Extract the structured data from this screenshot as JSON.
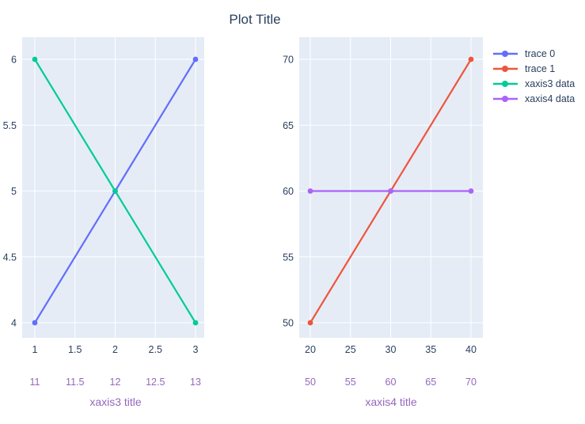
{
  "title": "Plot Title",
  "colors": {
    "paper": "#ffffff",
    "plot_bg": "#e5ecf6",
    "grid": "#ffffff",
    "text": "#2a3f5f",
    "secondary_axis": "#9467bd",
    "trace0": "#636efa",
    "trace1": "#ef553b",
    "xaxis3_data": "#00cc96",
    "xaxis4_data": "#ab63fa"
  },
  "legend": {
    "position": "right-top",
    "items": [
      {
        "label": "trace 0",
        "color": "#636efa"
      },
      {
        "label": "trace 1",
        "color": "#ef553b"
      },
      {
        "label": "xaxis3 data",
        "color": "#00cc96"
      },
      {
        "label": "xaxis4 data",
        "color": "#ab63fa"
      }
    ]
  },
  "chart_data": [
    {
      "type": "line",
      "subplot": "left",
      "grid": true,
      "traces": [
        {
          "name": "trace 0",
          "mode": "lines+markers",
          "xaxis": "x",
          "color": "#636efa",
          "x": [
            1,
            2,
            3
          ],
          "y": [
            4,
            5,
            6
          ]
        },
        {
          "name": "xaxis3 data",
          "mode": "lines+markers",
          "xaxis": "x2",
          "color": "#00cc96",
          "x": [
            11,
            12,
            13
          ],
          "y": [
            6,
            5,
            4
          ]
        }
      ],
      "axes": {
        "x": {
          "name": "xaxis1",
          "range": [
            1,
            3
          ],
          "ticks": [
            "1",
            "1.5",
            "2",
            "2.5",
            "3"
          ]
        },
        "x2": {
          "name": "xaxis3",
          "range": [
            11,
            13
          ],
          "ticks": [
            "11",
            "11.5",
            "12",
            "12.5",
            "13"
          ],
          "title": "xaxis3 title",
          "color": "#9467bd"
        },
        "y": {
          "name": "yaxis1",
          "range": [
            4,
            6
          ],
          "ticks": [
            "4",
            "4.5",
            "5",
            "5.5",
            "6"
          ]
        }
      }
    },
    {
      "type": "line",
      "subplot": "right",
      "grid": true,
      "traces": [
        {
          "name": "trace 1",
          "mode": "lines+markers",
          "xaxis": "x",
          "color": "#ef553b",
          "x": [
            20,
            30,
            40
          ],
          "y": [
            50,
            60,
            70
          ]
        },
        {
          "name": "xaxis4 data",
          "mode": "lines+markers",
          "xaxis": "x2",
          "color": "#ab63fa",
          "x": [
            50,
            60,
            70
          ],
          "y": [
            60,
            60,
            60
          ]
        }
      ],
      "axes": {
        "x": {
          "name": "xaxis2",
          "range": [
            20,
            40
          ],
          "ticks": [
            "20",
            "25",
            "30",
            "35",
            "40"
          ]
        },
        "x2": {
          "name": "xaxis4",
          "range": [
            50,
            70
          ],
          "ticks": [
            "50",
            "55",
            "60",
            "65",
            "70"
          ],
          "title": "xaxis4 title",
          "color": "#9467bd"
        },
        "y": {
          "name": "yaxis2",
          "range": [
            50,
            70
          ],
          "ticks": [
            "50",
            "55",
            "60",
            "65",
            "70"
          ]
        }
      }
    }
  ]
}
